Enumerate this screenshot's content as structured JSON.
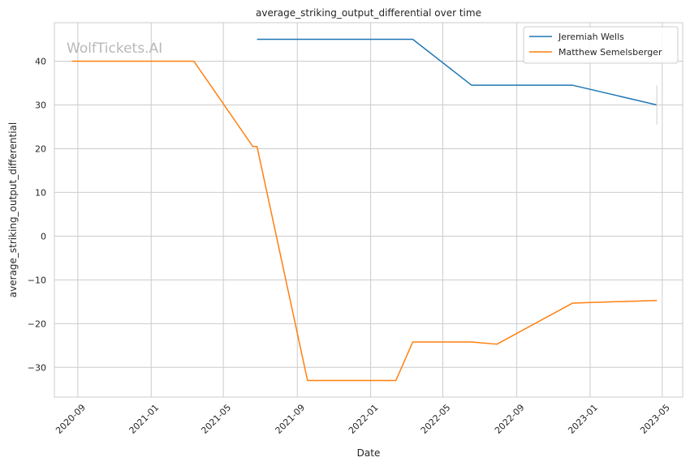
{
  "chart_data": {
    "type": "line",
    "title": "average_striking_output_differential over time",
    "xlabel": "Date",
    "ylabel": "average_striking_output_differential",
    "watermark": "WolfTickets.AI",
    "xlim": [
      "2020-07-24",
      "2023-06-04"
    ],
    "ylim": [
      -36.8,
      48.8
    ],
    "x_ticks": [
      {
        "date": "2020-09-01",
        "label": "2020-09"
      },
      {
        "date": "2021-01-01",
        "label": "2021-01"
      },
      {
        "date": "2021-05-01",
        "label": "2021-05"
      },
      {
        "date": "2021-09-01",
        "label": "2021-09"
      },
      {
        "date": "2022-01-01",
        "label": "2022-01"
      },
      {
        "date": "2022-05-01",
        "label": "2022-05"
      },
      {
        "date": "2022-09-01",
        "label": "2022-09"
      },
      {
        "date": "2023-01-01",
        "label": "2023-01"
      },
      {
        "date": "2023-05-01",
        "label": "2023-05"
      }
    ],
    "y_ticks": [
      {
        "value": -30,
        "label": "−30"
      },
      {
        "value": -20,
        "label": "−20"
      },
      {
        "value": -10,
        "label": "−10"
      },
      {
        "value": 0,
        "label": "0"
      },
      {
        "value": 10,
        "label": "10"
      },
      {
        "value": 20,
        "label": "20"
      },
      {
        "value": 30,
        "label": "30"
      },
      {
        "value": 40,
        "label": "40"
      }
    ],
    "grid": true,
    "legend_position": "top-right",
    "series": [
      {
        "name": "Jeremiah Wells",
        "color": "#1f77b4",
        "points": [
          {
            "x": "2021-06-26",
            "y": 45
          },
          {
            "x": "2022-03-12",
            "y": 45
          },
          {
            "x": "2022-06-18",
            "y": 34.5
          },
          {
            "x": "2022-12-03",
            "y": 34.5
          },
          {
            "x": "2023-04-22",
            "y": 30
          }
        ],
        "error_bar": {
          "x": "2023-04-22",
          "low": 25.5,
          "high": 34.5
        }
      },
      {
        "name": "Matthew Semelsberger",
        "color": "#ff7f0e",
        "points": [
          {
            "x": "2020-08-22",
            "y": 40
          },
          {
            "x": "2021-03-13",
            "y": 40
          },
          {
            "x": "2021-06-19",
            "y": 20.5
          },
          {
            "x": "2021-06-26",
            "y": 20.5
          },
          {
            "x": "2021-09-18",
            "y": -33
          },
          {
            "x": "2022-02-12",
            "y": -33
          },
          {
            "x": "2022-03-12",
            "y": -24.2
          },
          {
            "x": "2022-06-18",
            "y": -24.2
          },
          {
            "x": "2022-07-30",
            "y": -24.7
          },
          {
            "x": "2022-12-03",
            "y": -15.3
          },
          {
            "x": "2023-04-22",
            "y": -14.7
          }
        ]
      }
    ]
  }
}
